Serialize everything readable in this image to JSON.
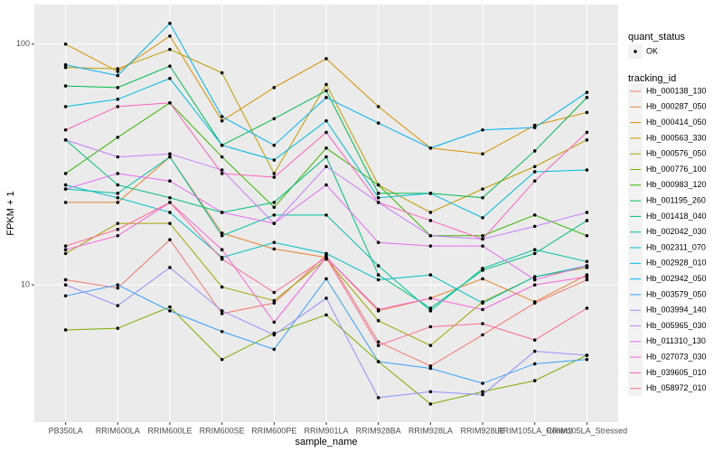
{
  "chart_data": {
    "type": "line",
    "x_label": "sample_name",
    "y_label": "FPKM + 1",
    "categories": [
      "PB350LA",
      "RRIM600LA",
      "RRIM600LE",
      "RRIM600SE",
      "RRIM600PE",
      "RRIM901LA",
      "RRIM928BA",
      "RRIM928LA",
      "RRIM928LE",
      "RRIM105LA_Control",
      "RRIM105LA_Stressed"
    ],
    "ylim": [
      2.69,
      146
    ],
    "yticks": [
      10,
      100
    ],
    "log_y": true,
    "grid": true,
    "legend_position": "right",
    "legend_title": "tracking_id",
    "point_legend": {
      "title": "quant_status",
      "labels": [
        "OK"
      ],
      "color": "#000000"
    },
    "series": [
      {
        "name": "Hb_000138_130",
        "color": "#F8766D",
        "values": [
          10.5,
          9.7,
          15.4,
          7.6,
          8.4,
          13.3,
          5.8,
          4.6,
          6.2,
          8.4,
          10.5
        ]
      },
      {
        "name": "Hb_000287_050",
        "color": "#EA8331",
        "values": [
          22,
          22,
          34,
          16.4,
          14.1,
          13,
          7.8,
          8.8,
          10.6,
          8.5,
          11
        ]
      },
      {
        "name": "Hb_000414_050",
        "color": "#D89000",
        "values": [
          100,
          77,
          108,
          48,
          66,
          87,
          55,
          37,
          35,
          46,
          52
        ]
      },
      {
        "name": "Hb_000563_330",
        "color": "#C09B00",
        "values": [
          80,
          79,
          95,
          76,
          29,
          68,
          26,
          20,
          25,
          31,
          40
        ]
      },
      {
        "name": "Hb_000576_050",
        "color": "#A3A500",
        "values": [
          13.5,
          18,
          18,
          9.8,
          8.6,
          12.8,
          7.1,
          5.6,
          8.5,
          10.8,
          11.8
        ]
      },
      {
        "name": "Hb_000776_100",
        "color": "#7CAE00",
        "values": [
          6.5,
          6.6,
          8.1,
          4.9,
          6.3,
          7.5,
          4.8,
          3.2,
          3.6,
          4,
          5.1
        ]
      },
      {
        "name": "Hb_000983_120",
        "color": "#39B600",
        "values": [
          29,
          41,
          57,
          34,
          21,
          37,
          26,
          16,
          16,
          19.5,
          16
        ]
      },
      {
        "name": "Hb_001195_260",
        "color": "#00BB4E",
        "values": [
          67,
          66,
          81,
          38,
          49,
          64,
          24,
          24,
          23,
          36,
          60
        ]
      },
      {
        "name": "Hb_001418_040",
        "color": "#00BF7D",
        "values": [
          40,
          26,
          23,
          20,
          22,
          34,
          11,
          8,
          11.5,
          13.5,
          18.5
        ]
      },
      {
        "name": "Hb_002042_030",
        "color": "#00C1A3",
        "values": [
          25,
          24,
          34,
          16,
          19.5,
          19.5,
          12,
          7.8,
          11.7,
          14,
          12.5
        ]
      },
      {
        "name": "Hb_002311_070",
        "color": "#00BFC4",
        "values": [
          26,
          23,
          20,
          13,
          15,
          13.5,
          10.5,
          11,
          8.4,
          10.8,
          12
        ]
      },
      {
        "name": "Hb_002928_010",
        "color": "#00BAE0",
        "values": [
          55,
          59,
          72,
          38,
          33,
          48,
          23,
          24,
          19,
          29.5,
          30
        ]
      },
      {
        "name": "Hb_002942_050",
        "color": "#00B0F6",
        "values": [
          82,
          74,
          122,
          50,
          38,
          60,
          47,
          37,
          44,
          45,
          63
        ]
      },
      {
        "name": "Hb_003579_050",
        "color": "#35A2FF",
        "values": [
          9,
          10,
          7.8,
          6.4,
          5.4,
          10.6,
          4.8,
          4.5,
          3.9,
          4.7,
          4.9
        ]
      },
      {
        "name": "Hb_003994_140",
        "color": "#9590FF",
        "values": [
          10,
          8.2,
          11.8,
          7.8,
          6.2,
          8.8,
          3.4,
          3.6,
          3.5,
          5.3,
          5.1
        ]
      },
      {
        "name": "Hb_005965_030",
        "color": "#C77CFF",
        "values": [
          40,
          34,
          35,
          30,
          18,
          31,
          22,
          16,
          15.5,
          17.5,
          20
        ]
      },
      {
        "name": "Hb_011310_130",
        "color": "#E76BF3",
        "values": [
          25,
          29,
          27,
          20,
          18,
          26,
          15,
          14.5,
          14.5,
          10.5,
          12
        ]
      },
      {
        "name": "Hb_027073_030",
        "color": "#FA62DB",
        "values": [
          14,
          16,
          22,
          14,
          7,
          13,
          7.9,
          8.8,
          7.9,
          10,
          10.8
        ]
      },
      {
        "name": "Hb_039605_010",
        "color": "#FF62BC",
        "values": [
          44,
          55,
          57,
          29,
          28,
          43,
          22,
          18.5,
          15.5,
          27,
          43
        ]
      },
      {
        "name": "Hb_058972_010",
        "color": "#FF6C91",
        "values": [
          14.5,
          17,
          22,
          12.8,
          9.3,
          13,
          5.6,
          6.7,
          6.9,
          5.9,
          8
        ]
      }
    ]
  }
}
